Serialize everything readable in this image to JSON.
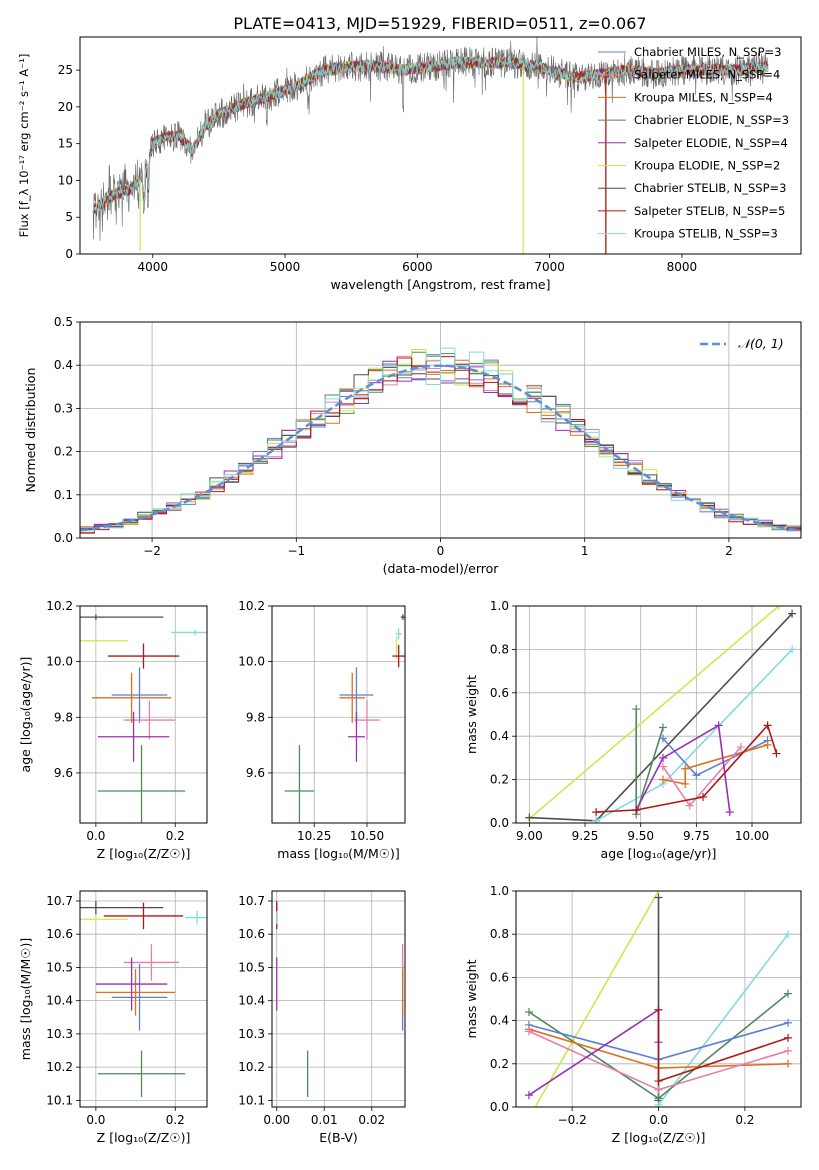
{
  "figure_title": "PLATE=0413, MJD=51929, FIBERID=0511, z=0.067",
  "colors": {
    "Chabrier MILES": "#5b7fd6",
    "Salpeter MILES": "#e57fb0",
    "Kroupa MILES": "#e36e1a",
    "Chabrier ELODIE": "#4e8a5c",
    "Salpeter ELODIE": "#9b2fb5",
    "Kroupa ELODIE": "#cfe64f",
    "Chabrier STELIB": "#4d4d4d",
    "Salpeter STELIB": "#b01818",
    "Kroupa STELIB": "#82d9e0",
    "gaussian": "#5b8fd6"
  },
  "chart_data": [
    {
      "id": "spectrum",
      "type": "line",
      "xlabel": "wavelength [Angstrom, rest frame]",
      "ylabel": "Flux [f_λ 10⁻¹⁷ erg cm⁻² s⁻¹ A⁻¹]",
      "xlim": [
        3450,
        8900
      ],
      "ylim": [
        0,
        29.5
      ],
      "xticks": [
        4000,
        5000,
        6000,
        7000,
        8000
      ],
      "yticks": [
        0,
        5,
        10,
        15,
        20,
        25
      ],
      "grid": false,
      "legend_position": "right",
      "series": [
        {
          "name": "Chabrier MILES, N_SSP=3",
          "key": "Chabrier MILES"
        },
        {
          "name": "Salpeter MILES, N_SSP=4",
          "key": "Salpeter MILES"
        },
        {
          "name": "Kroupa MILES, N_SSP=4",
          "key": "Kroupa MILES"
        },
        {
          "name": "Chabrier ELODIE, N_SSP=3",
          "key": "Chabrier ELODIE"
        },
        {
          "name": "Salpeter ELODIE, N_SSP=4",
          "key": "Salpeter ELODIE"
        },
        {
          "name": "Kroupa ELODIE, N_SSP=2",
          "key": "Kroupa ELODIE"
        },
        {
          "name": "Chabrier STELIB, N_SSP=3",
          "key": "Chabrier STELIB"
        },
        {
          "name": "Salpeter STELIB, N_SSP=5",
          "key": "Salpeter STELIB"
        },
        {
          "name": "Kroupa STELIB, N_SSP=3",
          "key": "Kroupa STELIB"
        }
      ],
      "continuum": {
        "x": [
          3550,
          3700,
          3850,
          3950,
          4000,
          4100,
          4200,
          4300,
          4400,
          4500,
          4700,
          4900,
          5100,
          5300,
          5500,
          5700,
          5900,
          6100,
          6300,
          6500,
          6700,
          6900,
          7000,
          7200,
          7400,
          7600,
          7800,
          8000,
          8200,
          8400,
          8650
        ],
        "y": [
          6,
          8,
          9,
          11,
          15,
          16,
          16,
          14,
          17.5,
          19,
          20.5,
          21.5,
          23,
          25,
          25.5,
          25.5,
          25,
          25.5,
          26,
          26,
          26,
          25.5,
          25,
          24,
          24.5,
          25,
          24.5,
          25,
          25,
          25,
          25.5
        ]
      }
    },
    {
      "id": "residuals",
      "type": "histogram",
      "xlabel": "(data-model)/error",
      "ylabel": "Normed distribution",
      "xlim": [
        -2.5,
        2.5
      ],
      "ylim": [
        0,
        0.5
      ],
      "xticks": [
        -2,
        -1,
        0,
        1,
        2
      ],
      "yticks": [
        0.0,
        0.1,
        0.2,
        0.3,
        0.4,
        0.5
      ],
      "grid": true,
      "legend_position": "top-right",
      "legend": "𝒩(0, 1)",
      "bin_width": 0.1,
      "noise_seeds": [
        3,
        7,
        11,
        19,
        23,
        29,
        31,
        37,
        41
      ]
    },
    {
      "id": "age_vs_Z",
      "type": "errorbar",
      "xlabel": "Z [log₁₀(Z/Z☉)]",
      "ylabel": "age  [log₁₀(age/yr)]",
      "xlim": [
        -0.04,
        0.28
      ],
      "ylim": [
        9.42,
        10.2
      ],
      "xticks": [
        0.0,
        0.2
      ],
      "yticks": [
        9.6,
        9.8,
        10.0,
        10.2
      ],
      "grid": true,
      "points": [
        {
          "key": "Chabrier MILES",
          "x": 0.11,
          "y": 9.88,
          "xerr": 0.07,
          "yerr": 0.1
        },
        {
          "key": "Salpeter MILES",
          "x": 0.135,
          "y": 9.79,
          "xerr": 0.065,
          "yerr": 0.07
        },
        {
          "key": "Kroupa MILES",
          "x": 0.09,
          "y": 9.87,
          "xerr": 0.1,
          "yerr": 0.09
        },
        {
          "key": "Chabrier ELODIE",
          "x": 0.115,
          "y": 9.535,
          "xerr": 0.11,
          "yerr": 0.165
        },
        {
          "key": "Salpeter ELODIE",
          "x": 0.095,
          "y": 9.73,
          "xerr": 0.09,
          "yerr": 0.09
        },
        {
          "key": "Kroupa ELODIE",
          "x": 0.0,
          "y": 10.075,
          "xerr": 0.08,
          "yerr": 0.01
        },
        {
          "key": "Chabrier STELIB",
          "x": 0.0,
          "y": 10.16,
          "xerr": 0.17,
          "yerr": 0.01
        },
        {
          "key": "Salpeter STELIB",
          "x": 0.12,
          "y": 10.02,
          "xerr": 0.09,
          "yerr": 0.045
        },
        {
          "key": "Kroupa STELIB",
          "x": 0.25,
          "y": 10.105,
          "xerr": 0.06,
          "yerr": 0.01
        }
      ]
    },
    {
      "id": "age_vs_mass",
      "type": "errorbar",
      "xlabel": "mass [log₁₀(M/M☉)]",
      "ylabel": "",
      "xlim": [
        10.05,
        10.68
      ],
      "ylim": [
        9.42,
        10.2
      ],
      "xticks": [
        10.25,
        10.5
      ],
      "yticks": [
        9.6,
        9.8,
        10.0,
        10.2
      ],
      "grid": true,
      "points": [
        {
          "key": "Chabrier MILES",
          "x": 10.45,
          "y": 9.88,
          "xerr": 0.08,
          "yerr": 0.1
        },
        {
          "key": "Salpeter MILES",
          "x": 10.5,
          "y": 9.79,
          "xerr": 0.06,
          "yerr": 0.07
        },
        {
          "key": "Kroupa MILES",
          "x": 10.43,
          "y": 9.87,
          "xerr": 0.06,
          "yerr": 0.09
        },
        {
          "key": "Chabrier ELODIE",
          "x": 10.18,
          "y": 9.535,
          "xerr": 0.07,
          "yerr": 0.165
        },
        {
          "key": "Salpeter ELODIE",
          "x": 10.45,
          "y": 9.73,
          "xerr": 0.04,
          "yerr": 0.09
        },
        {
          "key": "Kroupa ELODIE",
          "x": 10.64,
          "y": 10.05,
          "xerr": 0.005,
          "yerr": 0.04
        },
        {
          "key": "Chabrier STELIB",
          "x": 10.67,
          "y": 10.16,
          "xerr": 0.01,
          "yerr": 0.01
        },
        {
          "key": "Salpeter STELIB",
          "x": 10.65,
          "y": 10.02,
          "xerr": 0.03,
          "yerr": 0.04
        },
        {
          "key": "Kroupa STELIB",
          "x": 10.65,
          "y": 10.1,
          "xerr": 0.015,
          "yerr": 0.02
        }
      ]
    },
    {
      "id": "weight_vs_age",
      "type": "line",
      "xlabel": "age  [log₁₀(age/yr)]",
      "ylabel": "mass weight",
      "xlim": [
        8.94,
        10.22
      ],
      "ylim": [
        0,
        1
      ],
      "xticks": [
        9.0,
        9.25,
        9.5,
        9.75,
        10.0
      ],
      "yticks": [
        0.0,
        0.2,
        0.4,
        0.6,
        0.8,
        1.0
      ],
      "grid": true,
      "series": [
        {
          "key": "Kroupa ELODIE",
          "x": [
            9.0,
            10.12
          ],
          "y": [
            0.02,
            1.0
          ]
        },
        {
          "key": "Chabrier STELIB",
          "x": [
            9.0,
            9.3,
            10.18
          ],
          "y": [
            0.025,
            0.01,
            0.965
          ]
        },
        {
          "key": "Kroupa STELIB",
          "x": [
            9.3,
            9.6,
            10.18
          ],
          "y": [
            0.01,
            0.18,
            0.8
          ]
        },
        {
          "key": "Chabrier ELODIE",
          "x": [
            9.48,
            9.48,
            9.6
          ],
          "y": [
            0.525,
            0.04,
            0.44
          ]
        },
        {
          "key": "Chabrier MILES",
          "x": [
            9.6,
            9.75,
            10.07
          ],
          "y": [
            0.39,
            0.22,
            0.38
          ]
        },
        {
          "key": "Kroupa MILES",
          "x": [
            9.6,
            9.7,
            9.7,
            10.07
          ],
          "y": [
            0.2,
            0.18,
            0.25,
            0.36
          ]
        },
        {
          "key": "Salpeter MILES",
          "x": [
            9.6,
            9.72,
            9.95
          ],
          "y": [
            0.26,
            0.08,
            0.35
          ]
        },
        {
          "key": "Salpeter ELODIE",
          "x": [
            9.48,
            9.6,
            9.85,
            9.9
          ],
          "y": [
            0.06,
            0.3,
            0.45,
            0.05
          ]
        },
        {
          "key": "Salpeter STELIB",
          "x": [
            9.3,
            9.48,
            9.78,
            10.07,
            10.11
          ],
          "y": [
            0.05,
            0.06,
            0.12,
            0.45,
            0.32
          ]
        }
      ]
    },
    {
      "id": "mass_vs_Z",
      "type": "errorbar",
      "xlabel": "Z [log₁₀(Z/Z☉)]",
      "ylabel": "mass [log₁₀(M/M☉)]",
      "xlim": [
        -0.04,
        0.28
      ],
      "ylim": [
        10.08,
        10.73
      ],
      "xticks": [
        0.0,
        0.2
      ],
      "yticks": [
        10.1,
        10.2,
        10.3,
        10.4,
        10.5,
        10.6,
        10.7
      ],
      "grid": true,
      "points": [
        {
          "key": "Chabrier MILES",
          "x": 0.11,
          "y": 10.41,
          "xerr": 0.07,
          "yerr": 0.1
        },
        {
          "key": "Salpeter MILES",
          "x": 0.14,
          "y": 10.515,
          "xerr": 0.07,
          "yerr": 0.055
        },
        {
          "key": "Kroupa MILES",
          "x": 0.1,
          "y": 10.425,
          "xerr": 0.1,
          "yerr": 0.07
        },
        {
          "key": "Chabrier ELODIE",
          "x": 0.115,
          "y": 10.18,
          "xerr": 0.11,
          "yerr": 0.07
        },
        {
          "key": "Salpeter ELODIE",
          "x": 0.09,
          "y": 10.45,
          "xerr": 0.09,
          "yerr": 0.08
        },
        {
          "key": "Kroupa ELODIE",
          "x": 0.0,
          "y": 10.645,
          "xerr": 0.08,
          "yerr": 0.01
        },
        {
          "key": "Chabrier STELIB",
          "x": 0.0,
          "y": 10.68,
          "xerr": 0.17,
          "yerr": 0.02
        },
        {
          "key": "Salpeter STELIB",
          "x": 0.12,
          "y": 10.655,
          "xerr": 0.1,
          "yerr": 0.04
        },
        {
          "key": "Kroupa STELIB",
          "x": 0.255,
          "y": 10.65,
          "xerr": 0.03,
          "yerr": 0.02
        }
      ]
    },
    {
      "id": "mass_vs_EBV",
      "type": "errorbar",
      "xlabel": "E(B-V)",
      "ylabel": "",
      "xlim": [
        -0.001,
        0.027
      ],
      "ylim": [
        10.08,
        10.73
      ],
      "xticks": [
        0.0,
        0.01,
        0.02
      ],
      "yticks": [
        10.1,
        10.2,
        10.3,
        10.4,
        10.5,
        10.6,
        10.7
      ],
      "grid": true,
      "points": [
        {
          "key": "Chabrier MILES",
          "x": 0.0265,
          "y": 10.41,
          "xerr": 0.0,
          "yerr": 0.1
        },
        {
          "key": "Salpeter MILES",
          "x": 0.0265,
          "y": 10.515,
          "xerr": 0.0,
          "yerr": 0.055
        },
        {
          "key": "Kroupa MILES",
          "x": 0.0265,
          "y": 10.425,
          "xerr": 0.0,
          "yerr": 0.07
        },
        {
          "key": "Chabrier ELODIE",
          "x": 0.0065,
          "y": 10.18,
          "xerr": 0.0,
          "yerr": 0.07
        },
        {
          "key": "Salpeter ELODIE",
          "x": 0.0,
          "y": 10.45,
          "xerr": 0.0,
          "yerr": 0.08
        },
        {
          "key": "Kroupa ELODIE",
          "x": 0.0,
          "y": 10.645,
          "xerr": 0.0,
          "yerr": 0.03
        },
        {
          "key": "Chabrier STELIB",
          "x": 0.0,
          "y": 10.68,
          "xerr": 0.0,
          "yerr": 0.02
        },
        {
          "key": "Salpeter STELIB",
          "x": 0.0,
          "y": 10.655,
          "xerr": 0.0,
          "yerr": 0.04
        },
        {
          "key": "Kroupa STELIB",
          "x": 0.0,
          "y": 10.65,
          "xerr": 0.0,
          "yerr": 0.02
        }
      ]
    },
    {
      "id": "weight_vs_Z",
      "type": "line",
      "xlabel": "Z [log₁₀(Z/Z☉)]",
      "ylabel": "mass weight",
      "xlim": [
        -0.33,
        0.33
      ],
      "ylim": [
        0,
        1
      ],
      "xticks": [
        -0.2,
        0.0,
        0.2
      ],
      "yticks": [
        0.0,
        0.2,
        0.4,
        0.6,
        0.8,
        1.0
      ],
      "grid": true,
      "series": [
        {
          "key": "Kroupa ELODIE",
          "x": [
            -0.3,
            0.0
          ],
          "y": [
            -0.05,
            1.0
          ]
        },
        {
          "key": "Chabrier STELIB",
          "x": [
            0.0,
            0.0
          ],
          "y": [
            0.03,
            0.97
          ]
        },
        {
          "key": "Kroupa STELIB",
          "x": [
            0.0,
            0.3
          ],
          "y": [
            0.01,
            0.8
          ]
        },
        {
          "key": "Chabrier ELODIE",
          "x": [
            -0.3,
            0.0,
            0.3
          ],
          "y": [
            0.44,
            0.04,
            0.525
          ]
        },
        {
          "key": "Chabrier MILES",
          "x": [
            -0.3,
            0.0,
            0.3
          ],
          "y": [
            0.38,
            0.22,
            0.39
          ]
        },
        {
          "key": "Kroupa MILES",
          "x": [
            -0.3,
            0.0,
            0.3
          ],
          "y": [
            0.36,
            0.18,
            0.2
          ]
        },
        {
          "key": "Salpeter MILES",
          "x": [
            -0.3,
            0.0,
            0.3
          ],
          "y": [
            0.35,
            0.08,
            0.26
          ]
        },
        {
          "key": "Salpeter ELODIE",
          "x": [
            -0.3,
            0.0,
            0.0
          ],
          "y": [
            0.055,
            0.45,
            0.3
          ]
        },
        {
          "key": "Salpeter STELIB",
          "x": [
            0.0,
            0.0,
            0.3
          ],
          "y": [
            0.45,
            0.12,
            0.32
          ]
        }
      ]
    }
  ]
}
